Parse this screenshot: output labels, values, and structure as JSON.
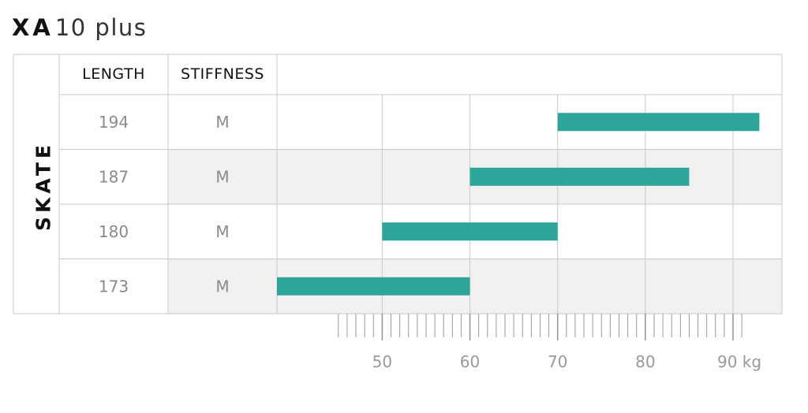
{
  "title": {
    "bold": "XA",
    "light": "10 plus"
  },
  "chart_data": {
    "type": "bar",
    "orientation": "horizontal-range",
    "section_label": "SKATE",
    "columns": [
      "LENGTH",
      "STIFFNESS"
    ],
    "rows": [
      {
        "length": "194",
        "stiffness": "M",
        "min": 70,
        "max": 93
      },
      {
        "length": "187",
        "stiffness": "M",
        "min": 60,
        "max": 85
      },
      {
        "length": "180",
        "stiffness": "M",
        "min": 50,
        "max": 70
      },
      {
        "length": "173",
        "stiffness": "M",
        "min": 38,
        "max": 60
      }
    ],
    "xlim": [
      38,
      93
    ],
    "major_ticks": [
      50,
      60,
      70,
      80,
      90
    ],
    "tick_labels": [
      "50",
      "60",
      "70",
      "80",
      "90 kg"
    ],
    "minor_tick_step": 1,
    "minor_tick_range": [
      45,
      91
    ],
    "colors": {
      "bar": "#2ea59a",
      "alt_row": "#f2f1ef",
      "grid": "#c9c9c9"
    }
  }
}
